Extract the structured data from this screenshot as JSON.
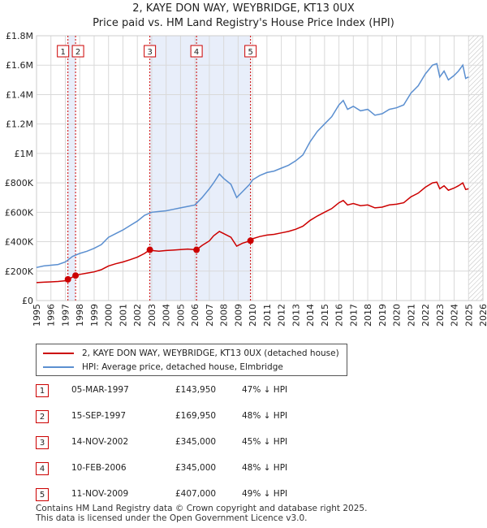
{
  "title": "2, KAYE DON WAY, WEYBRIDGE, KT13 0UX",
  "subtitle": "Price paid vs. HM Land Registry's House Price Index (HPI)",
  "legend": {
    "property": "2, KAYE DON WAY, WEYBRIDGE, KT13 0UX (detached house)",
    "hpi": "HPI: Average price, detached house, Elmbridge"
  },
  "transactions": [
    {
      "id": "1",
      "date": "05-MAR-1997",
      "price": "£143,950",
      "hpi": "47% ↓ HPI"
    },
    {
      "id": "2",
      "date": "15-SEP-1997",
      "price": "£169,950",
      "hpi": "48% ↓ HPI"
    },
    {
      "id": "3",
      "date": "14-NOV-2002",
      "price": "£345,000",
      "hpi": "45% ↓ HPI"
    },
    {
      "id": "4",
      "date": "10-FEB-2006",
      "price": "£345,000",
      "hpi": "48% ↓ HPI"
    },
    {
      "id": "5",
      "date": "11-NOV-2009",
      "price": "£407,000",
      "hpi": "49% ↓ HPI"
    }
  ],
  "footer": {
    "line1": "Contains HM Land Registry data © Crown copyright and database right 2025.",
    "line2": "This data is licensed under the Open Government Licence v3.0."
  },
  "colors": {
    "property": "#cc0000",
    "hpi": "#5b8fd0",
    "shade": "#e8eefa",
    "grid": "#d9d9d9"
  },
  "chart_data": {
    "type": "line",
    "title": "2, KAYE DON WAY, WEYBRIDGE, KT13 0UX",
    "subtitle": "Price paid vs. HM Land Registry's House Price Index (HPI)",
    "xlim": [
      1995,
      2026
    ],
    "ylim": [
      0,
      1800000
    ],
    "x_ticks": [
      1995,
      1996,
      1997,
      1998,
      1999,
      2000,
      2001,
      2002,
      2003,
      2004,
      2005,
      2006,
      2007,
      2008,
      2009,
      2010,
      2011,
      2012,
      2013,
      2014,
      2015,
      2016,
      2017,
      2018,
      2019,
      2020,
      2021,
      2022,
      2023,
      2024,
      2025,
      2026
    ],
    "y_ticks": [
      0,
      200000,
      400000,
      600000,
      800000,
      1000000,
      1200000,
      1400000,
      1600000,
      1800000
    ],
    "y_tick_labels": [
      "£0",
      "£200K",
      "£400K",
      "£600K",
      "£800K",
      "£1M",
      "£1.2M",
      "£1.4M",
      "£1.6M",
      "£1.8M"
    ],
    "forecast_start": 2025.0,
    "sales": [
      {
        "id": "1",
        "x": 1997.18,
        "y": 143950
      },
      {
        "id": "2",
        "x": 1997.71,
        "y": 169950
      },
      {
        "id": "3",
        "x": 2002.87,
        "y": 345000
      },
      {
        "id": "4",
        "x": 2006.11,
        "y": 345000
      },
      {
        "id": "5",
        "x": 2009.86,
        "y": 407000
      }
    ],
    "series": [
      {
        "name": "HPI: Average price, detached house, Elmbridge",
        "points": [
          [
            1995,
            225000
          ],
          [
            1995.5,
            235000
          ],
          [
            1996,
            240000
          ],
          [
            1996.5,
            245000
          ],
          [
            1997,
            262000
          ],
          [
            1997.5,
            300000
          ],
          [
            1998,
            320000
          ],
          [
            1998.5,
            335000
          ],
          [
            1999,
            355000
          ],
          [
            1999.5,
            380000
          ],
          [
            2000,
            430000
          ],
          [
            2000.5,
            455000
          ],
          [
            2001,
            480000
          ],
          [
            2001.5,
            510000
          ],
          [
            2002,
            540000
          ],
          [
            2002.5,
            580000
          ],
          [
            2003,
            600000
          ],
          [
            2003.5,
            605000
          ],
          [
            2004,
            610000
          ],
          [
            2004.5,
            620000
          ],
          [
            2005,
            630000
          ],
          [
            2005.5,
            640000
          ],
          [
            2006,
            650000
          ],
          [
            2006.5,
            700000
          ],
          [
            2007,
            760000
          ],
          [
            2007.3,
            800000
          ],
          [
            2007.7,
            860000
          ],
          [
            2008,
            830000
          ],
          [
            2008.5,
            790000
          ],
          [
            2008.9,
            700000
          ],
          [
            2009.3,
            740000
          ],
          [
            2009.8,
            790000
          ],
          [
            2010,
            820000
          ],
          [
            2010.5,
            850000
          ],
          [
            2011,
            870000
          ],
          [
            2011.5,
            880000
          ],
          [
            2012,
            900000
          ],
          [
            2012.5,
            920000
          ],
          [
            2013,
            950000
          ],
          [
            2013.5,
            990000
          ],
          [
            2014,
            1080000
          ],
          [
            2014.5,
            1150000
          ],
          [
            2015,
            1200000
          ],
          [
            2015.5,
            1250000
          ],
          [
            2016,
            1330000
          ],
          [
            2016.3,
            1360000
          ],
          [
            2016.6,
            1300000
          ],
          [
            2017,
            1320000
          ],
          [
            2017.5,
            1290000
          ],
          [
            2018,
            1300000
          ],
          [
            2018.5,
            1260000
          ],
          [
            2019,
            1270000
          ],
          [
            2019.5,
            1300000
          ],
          [
            2020,
            1310000
          ],
          [
            2020.5,
            1330000
          ],
          [
            2021,
            1410000
          ],
          [
            2021.5,
            1460000
          ],
          [
            2022,
            1540000
          ],
          [
            2022.5,
            1600000
          ],
          [
            2022.8,
            1610000
          ],
          [
            2023,
            1520000
          ],
          [
            2023.3,
            1560000
          ],
          [
            2023.6,
            1500000
          ],
          [
            2024,
            1530000
          ],
          [
            2024.3,
            1560000
          ],
          [
            2024.6,
            1600000
          ],
          [
            2024.8,
            1510000
          ],
          [
            2025.0,
            1520000
          ]
        ]
      },
      {
        "name": "2, KAYE DON WAY, WEYBRIDGE, KT13 0UX (detached house)",
        "points": [
          [
            1995,
            122000
          ],
          [
            1995.5,
            125000
          ],
          [
            1996,
            127000
          ],
          [
            1996.5,
            130000
          ],
          [
            1997,
            135000
          ],
          [
            1997.18,
            143950
          ],
          [
            1997.71,
            169950
          ],
          [
            1998,
            178000
          ],
          [
            1998.5,
            186000
          ],
          [
            1999,
            195000
          ],
          [
            1999.5,
            210000
          ],
          [
            2000,
            235000
          ],
          [
            2000.5,
            250000
          ],
          [
            2001,
            262000
          ],
          [
            2001.5,
            278000
          ],
          [
            2002,
            295000
          ],
          [
            2002.5,
            320000
          ],
          [
            2002.87,
            345000
          ],
          [
            2003,
            340000
          ],
          [
            2003.5,
            335000
          ],
          [
            2004,
            340000
          ],
          [
            2004.5,
            343000
          ],
          [
            2005,
            347000
          ],
          [
            2005.5,
            350000
          ],
          [
            2006.11,
            345000
          ],
          [
            2006.5,
            375000
          ],
          [
            2007,
            405000
          ],
          [
            2007.3,
            440000
          ],
          [
            2007.7,
            470000
          ],
          [
            2008,
            455000
          ],
          [
            2008.5,
            430000
          ],
          [
            2008.9,
            370000
          ],
          [
            2009.3,
            390000
          ],
          [
            2009.86,
            407000
          ],
          [
            2010,
            420000
          ],
          [
            2010.5,
            435000
          ],
          [
            2011,
            445000
          ],
          [
            2011.5,
            450000
          ],
          [
            2012,
            460000
          ],
          [
            2012.5,
            470000
          ],
          [
            2013,
            485000
          ],
          [
            2013.5,
            505000
          ],
          [
            2014,
            545000
          ],
          [
            2014.5,
            575000
          ],
          [
            2015,
            600000
          ],
          [
            2015.5,
            625000
          ],
          [
            2016,
            665000
          ],
          [
            2016.3,
            680000
          ],
          [
            2016.6,
            650000
          ],
          [
            2017,
            660000
          ],
          [
            2017.5,
            645000
          ],
          [
            2018,
            650000
          ],
          [
            2018.5,
            630000
          ],
          [
            2019,
            635000
          ],
          [
            2019.5,
            650000
          ],
          [
            2020,
            655000
          ],
          [
            2020.5,
            665000
          ],
          [
            2021,
            705000
          ],
          [
            2021.5,
            730000
          ],
          [
            2022,
            770000
          ],
          [
            2022.5,
            800000
          ],
          [
            2022.8,
            805000
          ],
          [
            2023,
            760000
          ],
          [
            2023.3,
            780000
          ],
          [
            2023.6,
            750000
          ],
          [
            2024,
            765000
          ],
          [
            2024.3,
            780000
          ],
          [
            2024.6,
            800000
          ],
          [
            2024.8,
            755000
          ],
          [
            2025.0,
            760000
          ]
        ]
      }
    ]
  }
}
